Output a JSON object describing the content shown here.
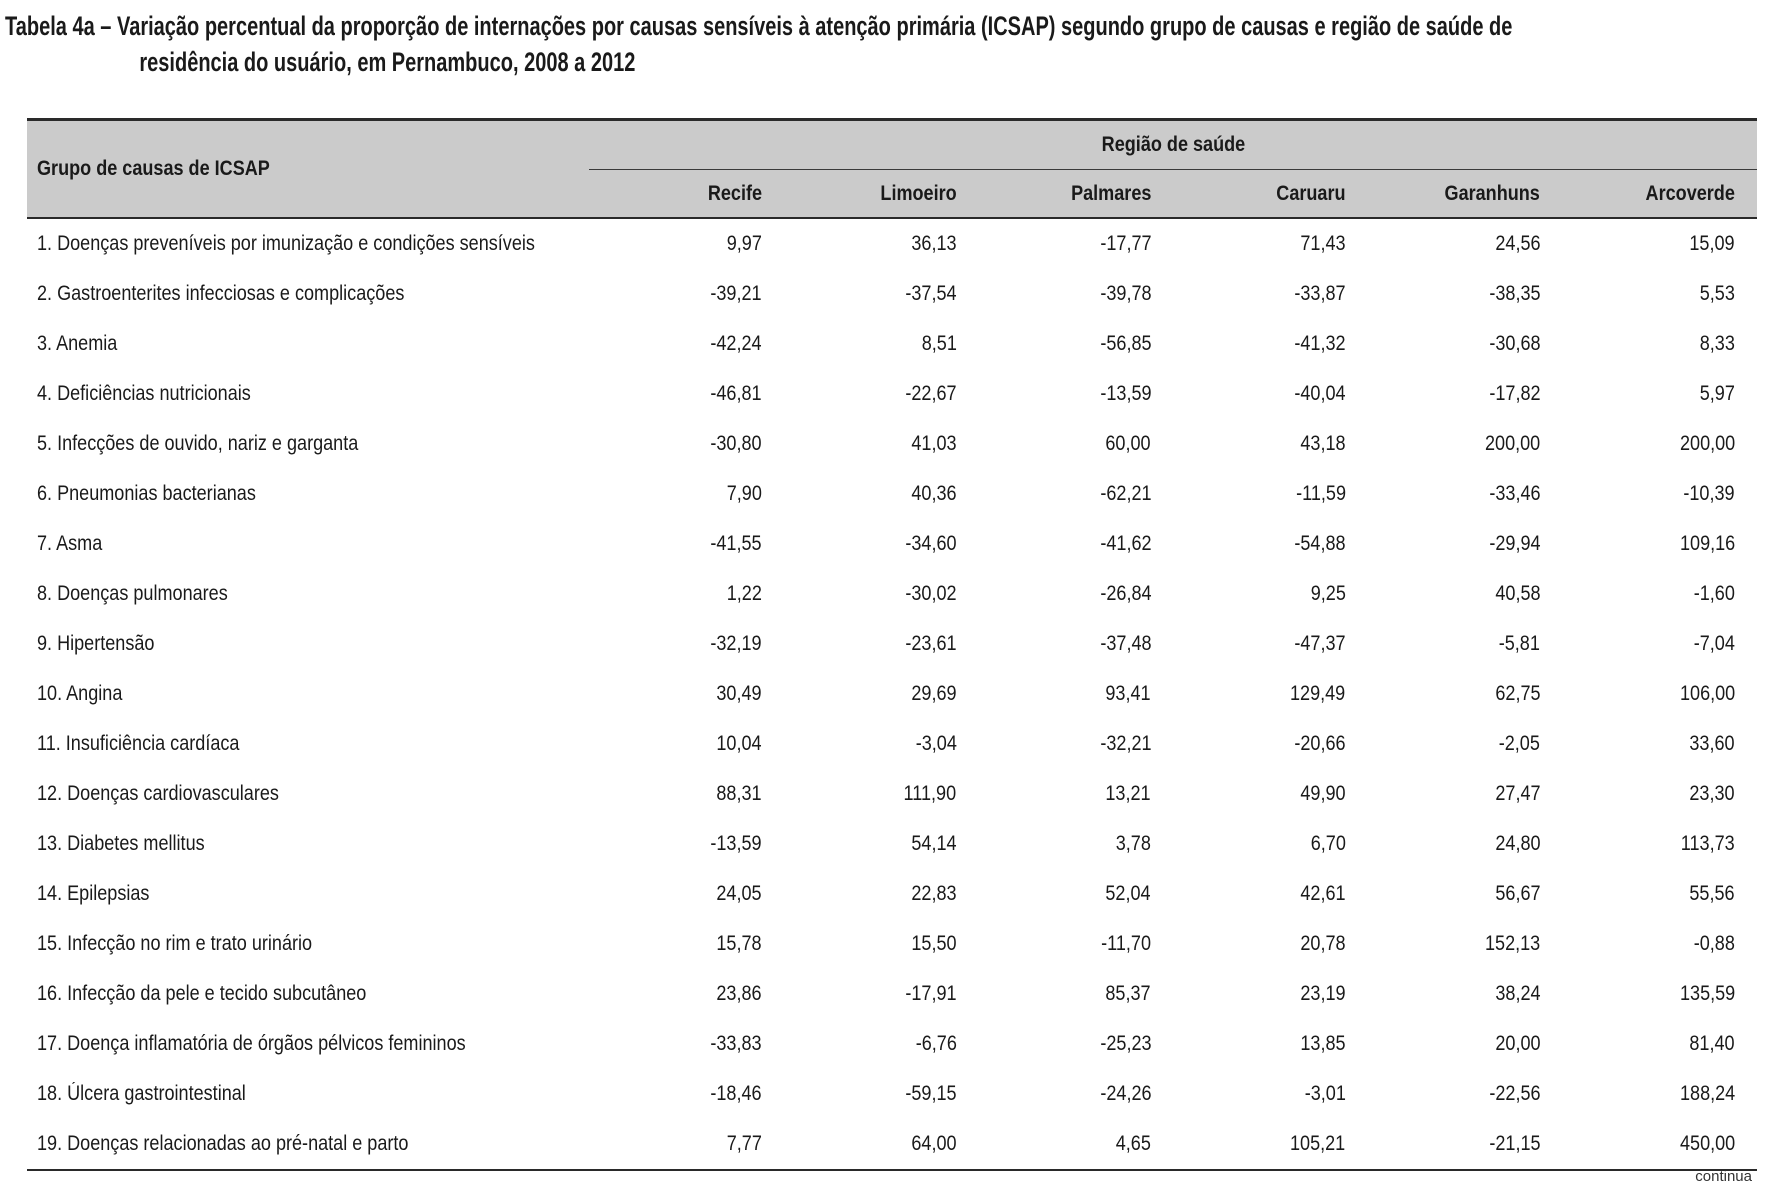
{
  "caption": {
    "line1": "Tabela 4a – Variação percentual da proporção de internações por causas sensíveis à atenção primária (ICSAP) segundo grupo de causas e região de saúde de",
    "line2": "residência do usuário, em Pernambuco, 2008 a 2012"
  },
  "table": {
    "group_header": "Grupo de causas de ICSAP",
    "region_header": "Região de saúde",
    "columns": [
      "Recife",
      "Limoeiro",
      "Palmares",
      "Caruaru",
      "Garanhuns",
      "Arcoverde"
    ],
    "rows": [
      {
        "label": "1.  Doenças preveníveis por imunização e condições sensíveis",
        "values": [
          "9,97",
          "36,13",
          "-17,77",
          "71,43",
          "24,56",
          "15,09"
        ]
      },
      {
        "label": "2.  Gastroenterites infecciosas e complicações",
        "values": [
          "-39,21",
          "-37,54",
          "-39,78",
          "-33,87",
          "-38,35",
          "5,53"
        ]
      },
      {
        "label": "3.  Anemia",
        "values": [
          "-42,24",
          "8,51",
          "-56,85",
          "-41,32",
          "-30,68",
          "8,33"
        ]
      },
      {
        "label": "4.  Deficiências nutricionais",
        "values": [
          "-46,81",
          "-22,67",
          "-13,59",
          "-40,04",
          "-17,82",
          "5,97"
        ]
      },
      {
        "label": "5.  Infecções de ouvido, nariz e garganta",
        "values": [
          "-30,80",
          "41,03",
          "60,00",
          "43,18",
          "200,00",
          "200,00"
        ]
      },
      {
        "label": "6.  Pneumonias bacterianas",
        "values": [
          "7,90",
          "40,36",
          "-62,21",
          "-11,59",
          "-33,46",
          "-10,39"
        ]
      },
      {
        "label": "7.  Asma",
        "values": [
          "-41,55",
          "-34,60",
          "-41,62",
          "-54,88",
          "-29,94",
          "109,16"
        ]
      },
      {
        "label": "8.  Doenças pulmonares",
        "values": [
          "1,22",
          "-30,02",
          "-26,84",
          "9,25",
          "40,58",
          "-1,60"
        ]
      },
      {
        "label": "9.  Hipertensão",
        "values": [
          "-32,19",
          "-23,61",
          "-37,48",
          "-47,37",
          "-5,81",
          "-7,04"
        ]
      },
      {
        "label": "10. Angina",
        "values": [
          "30,49",
          "29,69",
          "93,41",
          "129,49",
          "62,75",
          "106,00"
        ]
      },
      {
        "label": "11. Insuficiência cardíaca",
        "values": [
          "10,04",
          "-3,04",
          "-32,21",
          "-20,66",
          "-2,05",
          "33,60"
        ]
      },
      {
        "label": "12. Doenças cardiovasculares",
        "values": [
          "88,31",
          "111,90",
          "13,21",
          "49,90",
          "27,47",
          "23,30"
        ]
      },
      {
        "label": "13. Diabetes mellitus",
        "values": [
          "-13,59",
          "54,14",
          "3,78",
          "6,70",
          "24,80",
          "113,73"
        ]
      },
      {
        "label": "14. Epilepsias",
        "values": [
          "24,05",
          "22,83",
          "52,04",
          "42,61",
          "56,67",
          "55,56"
        ]
      },
      {
        "label": "15. Infecção no rim e trato urinário",
        "values": [
          "15,78",
          "15,50",
          "-11,70",
          "20,78",
          "152,13",
          "-0,88"
        ]
      },
      {
        "label": "16. Infecção da pele e tecido subcutâneo",
        "values": [
          "23,86",
          "-17,91",
          "85,37",
          "23,19",
          "38,24",
          "135,59"
        ]
      },
      {
        "label": "17. Doença inflamatória de órgãos pélvicos femininos",
        "values": [
          "-33,83",
          "-6,76",
          "-25,23",
          "13,85",
          "20,00",
          "81,40"
        ]
      },
      {
        "label": "18. Úlcera gastrointestinal",
        "values": [
          "-18,46",
          "-59,15",
          "-24,26",
          "-3,01",
          "-22,56",
          "188,24"
        ]
      },
      {
        "label": "19. Doenças relacionadas ao pré-natal e parto",
        "values": [
          "7,77",
          "64,00",
          "4,65",
          "105,21",
          "-21,15",
          "450,00"
        ]
      }
    ]
  },
  "footer": {
    "continua": "continua"
  }
}
